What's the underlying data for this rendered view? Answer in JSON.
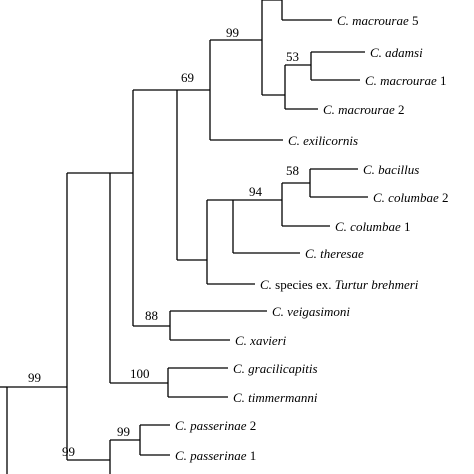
{
  "tree": {
    "taxa": [
      {
        "genus": "C.",
        "species": "macrourae",
        "suffix": "5"
      },
      {
        "genus": "C.",
        "species": "adamsi",
        "suffix": ""
      },
      {
        "genus": "C.",
        "species": "macrourae",
        "suffix": "1"
      },
      {
        "genus": "C.",
        "species": "macrourae",
        "suffix": "2"
      },
      {
        "genus": "C.",
        "species": "exilicornis",
        "suffix": ""
      },
      {
        "genus": "C.",
        "species": "bacillus",
        "suffix": ""
      },
      {
        "genus": "C.",
        "species": "columbae",
        "suffix": "2"
      },
      {
        "genus": "C.",
        "species": "columbae",
        "suffix": "1"
      },
      {
        "genus": "C.",
        "species": "theresae",
        "suffix": ""
      },
      {
        "genus": "C.",
        "species": "species ex.",
        "suffix": "Turtur brehmeri"
      },
      {
        "genus": "C.",
        "species": "veigasimoni",
        "suffix": ""
      },
      {
        "genus": "C.",
        "species": "xavieri",
        "suffix": ""
      },
      {
        "genus": "C.",
        "species": "gracilicapitis",
        "suffix": ""
      },
      {
        "genus": "C.",
        "species": "timmermanni",
        "suffix": ""
      },
      {
        "genus": "C.",
        "species": "passerinae",
        "suffix": "2"
      },
      {
        "genus": "C.",
        "species": "passerinae",
        "suffix": "1"
      }
    ],
    "bootstrap": [
      "99",
      "53",
      "69",
      "58",
      "94",
      "88",
      "100",
      "99",
      "99",
      "99"
    ]
  }
}
